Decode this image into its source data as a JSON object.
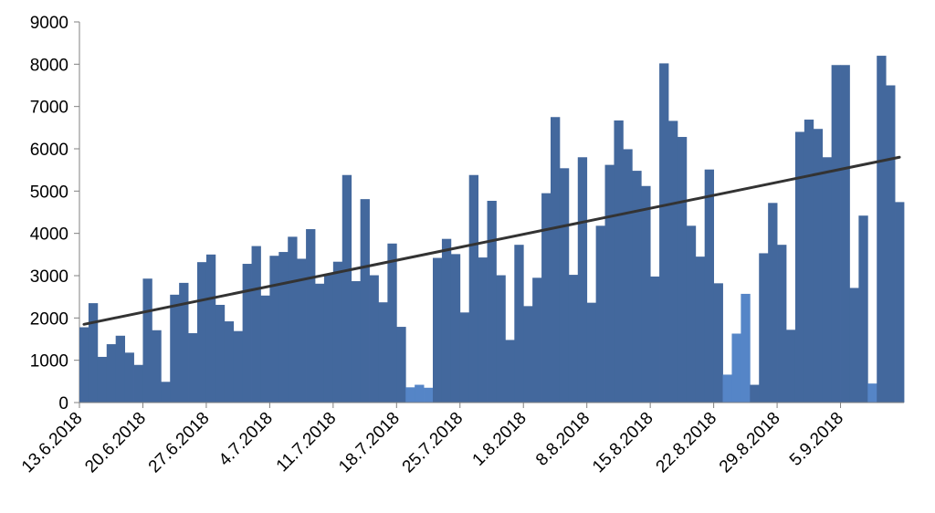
{
  "chart_data": {
    "type": "bar",
    "start_date": "13.6.2018",
    "x_tick_labels": [
      "13.6.2018",
      "20.6.2018",
      "27.6.2018",
      "4.7.2018",
      "11.7.2018",
      "18.7.2018",
      "25.7.2018",
      "1.8.2018",
      "8.8.2018",
      "15.8.2018",
      "22.8.2018",
      "29.8.2018",
      "5.9.2018"
    ],
    "ylim": [
      0,
      9000
    ],
    "y_ticks": [
      0,
      1000,
      2000,
      3000,
      4000,
      5000,
      6000,
      7000,
      8000,
      9000
    ],
    "series": [
      {
        "values": [
          1780,
          2350,
          1080,
          1380,
          1580,
          1180,
          890,
          2930,
          1710,
          490,
          2550,
          2830,
          1640,
          3320,
          3500,
          2310,
          1920,
          1690,
          3280,
          3700,
          2530,
          3470,
          3560,
          3920,
          3400,
          4100,
          2810,
          3030,
          3330,
          5380,
          2870,
          4810,
          3010,
          2370,
          3760,
          1790,
          360,
          420,
          350,
          3420,
          3870,
          3510,
          2130,
          5380,
          3430,
          4770,
          3010,
          1480,
          3730,
          2280,
          2950,
          4950,
          6750,
          5540,
          3020,
          5800,
          2360,
          4180,
          5620,
          6670,
          5990,
          5480,
          5120,
          2980,
          8020,
          6660,
          6280,
          4180,
          3450,
          5510,
          2820,
          660,
          1630,
          2570,
          420,
          3530,
          4720,
          3730,
          1720,
          6400,
          6690,
          6470,
          5800,
          7980,
          7980,
          2710,
          4420,
          450,
          8200,
          7500,
          4740
        ],
        "highlight_indices": [
          36,
          37,
          38,
          71,
          72,
          73,
          87
        ],
        "color": "#43689d",
        "highlight_color": "#5585c7"
      }
    ],
    "trendline": {
      "type": "linear",
      "start": 1850,
      "end": 5800,
      "color": "#333333"
    },
    "grid": false,
    "legend": "none"
  }
}
